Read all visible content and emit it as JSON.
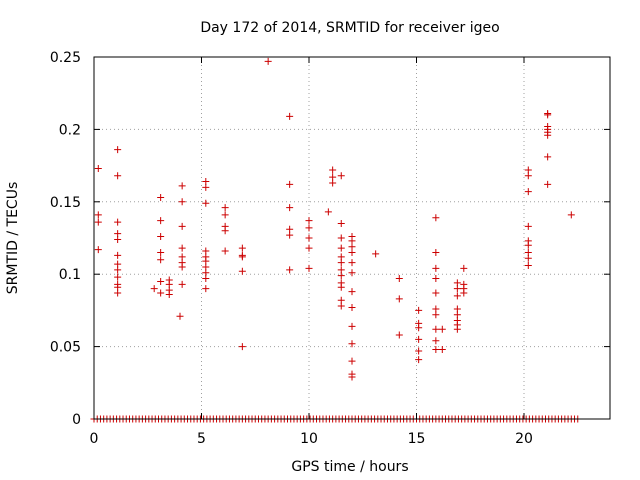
{
  "chart_data": {
    "type": "scatter",
    "title": "Day 172 of 2014, SRMTID for receiver igeo",
    "xlabel": "GPS time / hours",
    "ylabel": "SRMTID / TECUs",
    "xlim": [
      0,
      24
    ],
    "ylim": [
      0,
      0.25
    ],
    "xticks": [
      0,
      5,
      10,
      15,
      20
    ],
    "xtick_labels": [
      "0",
      "5",
      "10",
      "15",
      "20"
    ],
    "yticks": [
      0,
      0.05,
      0.1,
      0.15,
      0.2,
      0.25
    ],
    "ytick_labels": [
      "0",
      "0.05",
      "0.1",
      "0.15",
      "0.2",
      "0.25"
    ],
    "grid": true,
    "marker": "+",
    "marker_color": "#cc0000",
    "series": [
      {
        "name": "SRMTID",
        "points": [
          [
            0.2,
            0.173
          ],
          [
            0.2,
            0.141
          ],
          [
            0.2,
            0.136
          ],
          [
            0.2,
            0.117
          ],
          [
            1.1,
            0.186
          ],
          [
            1.1,
            0.168
          ],
          [
            1.1,
            0.136
          ],
          [
            1.1,
            0.128
          ],
          [
            1.1,
            0.124
          ],
          [
            1.1,
            0.113
          ],
          [
            1.1,
            0.107
          ],
          [
            1.1,
            0.103
          ],
          [
            1.1,
            0.098
          ],
          [
            1.1,
            0.093
          ],
          [
            1.1,
            0.091
          ],
          [
            1.1,
            0.087
          ],
          [
            2.8,
            0.09
          ],
          [
            3.1,
            0.153
          ],
          [
            3.1,
            0.137
          ],
          [
            3.1,
            0.126
          ],
          [
            3.1,
            0.115
          ],
          [
            3.1,
            0.11
          ],
          [
            3.1,
            0.095
          ],
          [
            3.1,
            0.087
          ],
          [
            3.5,
            0.096
          ],
          [
            3.5,
            0.093
          ],
          [
            3.5,
            0.089
          ],
          [
            3.5,
            0.086
          ],
          [
            4.0,
            0.071
          ],
          [
            4.1,
            0.161
          ],
          [
            4.1,
            0.15
          ],
          [
            4.1,
            0.133
          ],
          [
            4.1,
            0.118
          ],
          [
            4.1,
            0.112
          ],
          [
            4.1,
            0.108
          ],
          [
            4.1,
            0.105
          ],
          [
            4.1,
            0.093
          ],
          [
            5.2,
            0.164
          ],
          [
            5.2,
            0.16
          ],
          [
            5.2,
            0.149
          ],
          [
            5.2,
            0.116
          ],
          [
            5.2,
            0.112
          ],
          [
            5.2,
            0.109
          ],
          [
            5.2,
            0.105
          ],
          [
            5.2,
            0.101
          ],
          [
            5.2,
            0.097
          ],
          [
            5.2,
            0.09
          ],
          [
            6.1,
            0.146
          ],
          [
            6.1,
            0.141
          ],
          [
            6.1,
            0.133
          ],
          [
            6.1,
            0.13
          ],
          [
            6.1,
            0.116
          ],
          [
            6.9,
            0.118
          ],
          [
            6.9,
            0.113
          ],
          [
            6.9,
            0.112
          ],
          [
            6.9,
            0.102
          ],
          [
            6.9,
            0.05
          ],
          [
            8.1,
            0.247
          ],
          [
            9.1,
            0.209
          ],
          [
            9.1,
            0.162
          ],
          [
            9.1,
            0.146
          ],
          [
            9.1,
            0.131
          ],
          [
            9.1,
            0.127
          ],
          [
            9.1,
            0.103
          ],
          [
            10.0,
            0.137
          ],
          [
            10.0,
            0.132
          ],
          [
            10.0,
            0.125
          ],
          [
            10.0,
            0.118
          ],
          [
            10.0,
            0.104
          ],
          [
            10.9,
            0.143
          ],
          [
            11.1,
            0.172
          ],
          [
            11.1,
            0.167
          ],
          [
            11.1,
            0.163
          ],
          [
            11.5,
            0.168
          ],
          [
            11.5,
            0.135
          ],
          [
            11.5,
            0.125
          ],
          [
            11.5,
            0.118
          ],
          [
            11.5,
            0.112
          ],
          [
            11.5,
            0.108
          ],
          [
            11.5,
            0.103
          ],
          [
            11.5,
            0.099
          ],
          [
            11.5,
            0.094
          ],
          [
            11.5,
            0.091
          ],
          [
            11.5,
            0.082
          ],
          [
            11.5,
            0.078
          ],
          [
            12.0,
            0.126
          ],
          [
            12.0,
            0.123
          ],
          [
            12.0,
            0.119
          ],
          [
            12.0,
            0.115
          ],
          [
            12.0,
            0.108
          ],
          [
            12.0,
            0.101
          ],
          [
            12.0,
            0.088
          ],
          [
            12.0,
            0.077
          ],
          [
            12.0,
            0.064
          ],
          [
            12.0,
            0.052
          ],
          [
            12.0,
            0.04
          ],
          [
            12.0,
            0.031
          ],
          [
            12.0,
            0.029
          ],
          [
            13.1,
            0.114
          ],
          [
            14.2,
            0.097
          ],
          [
            14.2,
            0.083
          ],
          [
            14.2,
            0.058
          ],
          [
            15.1,
            0.075
          ],
          [
            15.1,
            0.066
          ],
          [
            15.1,
            0.063
          ],
          [
            15.1,
            0.055
          ],
          [
            15.1,
            0.047
          ],
          [
            15.1,
            0.041
          ],
          [
            15.9,
            0.139
          ],
          [
            15.9,
            0.115
          ],
          [
            15.9,
            0.104
          ],
          [
            15.9,
            0.097
          ],
          [
            15.9,
            0.087
          ],
          [
            15.9,
            0.076
          ],
          [
            15.9,
            0.072
          ],
          [
            15.9,
            0.062
          ],
          [
            15.9,
            0.054
          ],
          [
            15.9,
            0.048
          ],
          [
            16.2,
            0.048
          ],
          [
            16.2,
            0.062
          ],
          [
            16.9,
            0.094
          ],
          [
            16.9,
            0.09
          ],
          [
            16.9,
            0.085
          ],
          [
            16.9,
            0.076
          ],
          [
            16.9,
            0.072
          ],
          [
            16.9,
            0.068
          ],
          [
            16.9,
            0.065
          ],
          [
            16.9,
            0.062
          ],
          [
            17.2,
            0.104
          ],
          [
            17.2,
            0.093
          ],
          [
            17.2,
            0.09
          ],
          [
            17.2,
            0.087
          ],
          [
            20.2,
            0.172
          ],
          [
            20.2,
            0.168
          ],
          [
            20.2,
            0.157
          ],
          [
            20.2,
            0.133
          ],
          [
            20.2,
            0.123
          ],
          [
            20.2,
            0.12
          ],
          [
            20.2,
            0.115
          ],
          [
            20.2,
            0.111
          ],
          [
            20.2,
            0.106
          ],
          [
            21.1,
            0.211
          ],
          [
            21.1,
            0.21
          ],
          [
            21.1,
            0.202
          ],
          [
            21.1,
            0.2
          ],
          [
            21.1,
            0.198
          ],
          [
            21.1,
            0.196
          ],
          [
            21.1,
            0.181
          ],
          [
            21.1,
            0.162
          ],
          [
            22.2,
            0.141
          ]
        ],
        "zero_x": [
          0,
          0.15,
          0.3,
          0.45,
          0.6,
          0.75,
          0.9,
          1.05,
          1.2,
          1.35,
          1.5,
          1.65,
          1.8,
          1.95,
          2.1,
          2.25,
          2.4,
          2.55,
          2.7,
          2.85,
          3.0,
          3.15,
          3.3,
          3.45,
          3.6,
          3.75,
          3.9,
          4.05,
          4.2,
          4.35,
          4.5,
          4.65,
          4.8,
          4.95,
          5.1,
          5.25,
          5.4,
          5.55,
          5.7,
          5.85,
          6.0,
          6.15,
          6.3,
          6.45,
          6.6,
          6.75,
          6.9,
          7.05,
          7.2,
          7.35,
          7.5,
          7.65,
          7.8,
          7.95,
          8.1,
          8.25,
          8.4,
          8.55,
          8.7,
          8.85,
          9.0,
          9.15,
          9.3,
          9.45,
          9.6,
          9.75,
          9.9,
          10.05,
          10.2,
          10.35,
          10.5,
          10.65,
          10.8,
          10.95,
          11.1,
          11.25,
          11.4,
          11.55,
          11.7,
          11.85,
          12.0,
          12.15,
          12.3,
          12.45,
          12.6,
          12.75,
          12.9,
          13.05,
          13.2,
          13.35,
          13.5,
          13.65,
          13.8,
          13.95,
          14.1,
          14.25,
          14.4,
          14.55,
          14.7,
          14.85,
          15.0,
          15.15,
          15.3,
          15.45,
          15.6,
          15.75,
          15.9,
          16.05,
          16.2,
          16.35,
          16.5,
          16.65,
          16.8,
          16.95,
          17.1,
          17.25,
          17.4,
          17.55,
          17.7,
          17.85,
          18.0,
          18.15,
          18.3,
          18.45,
          18.6,
          18.75,
          18.9,
          19.05,
          19.2,
          19.35,
          19.5,
          19.65,
          19.8,
          19.95,
          20.1,
          20.25,
          20.4,
          20.55,
          20.7,
          20.85,
          21.0,
          21.15,
          21.3,
          21.45,
          21.6,
          21.75,
          21.9,
          22.05,
          22.2,
          22.35,
          22.5
        ]
      }
    ]
  }
}
